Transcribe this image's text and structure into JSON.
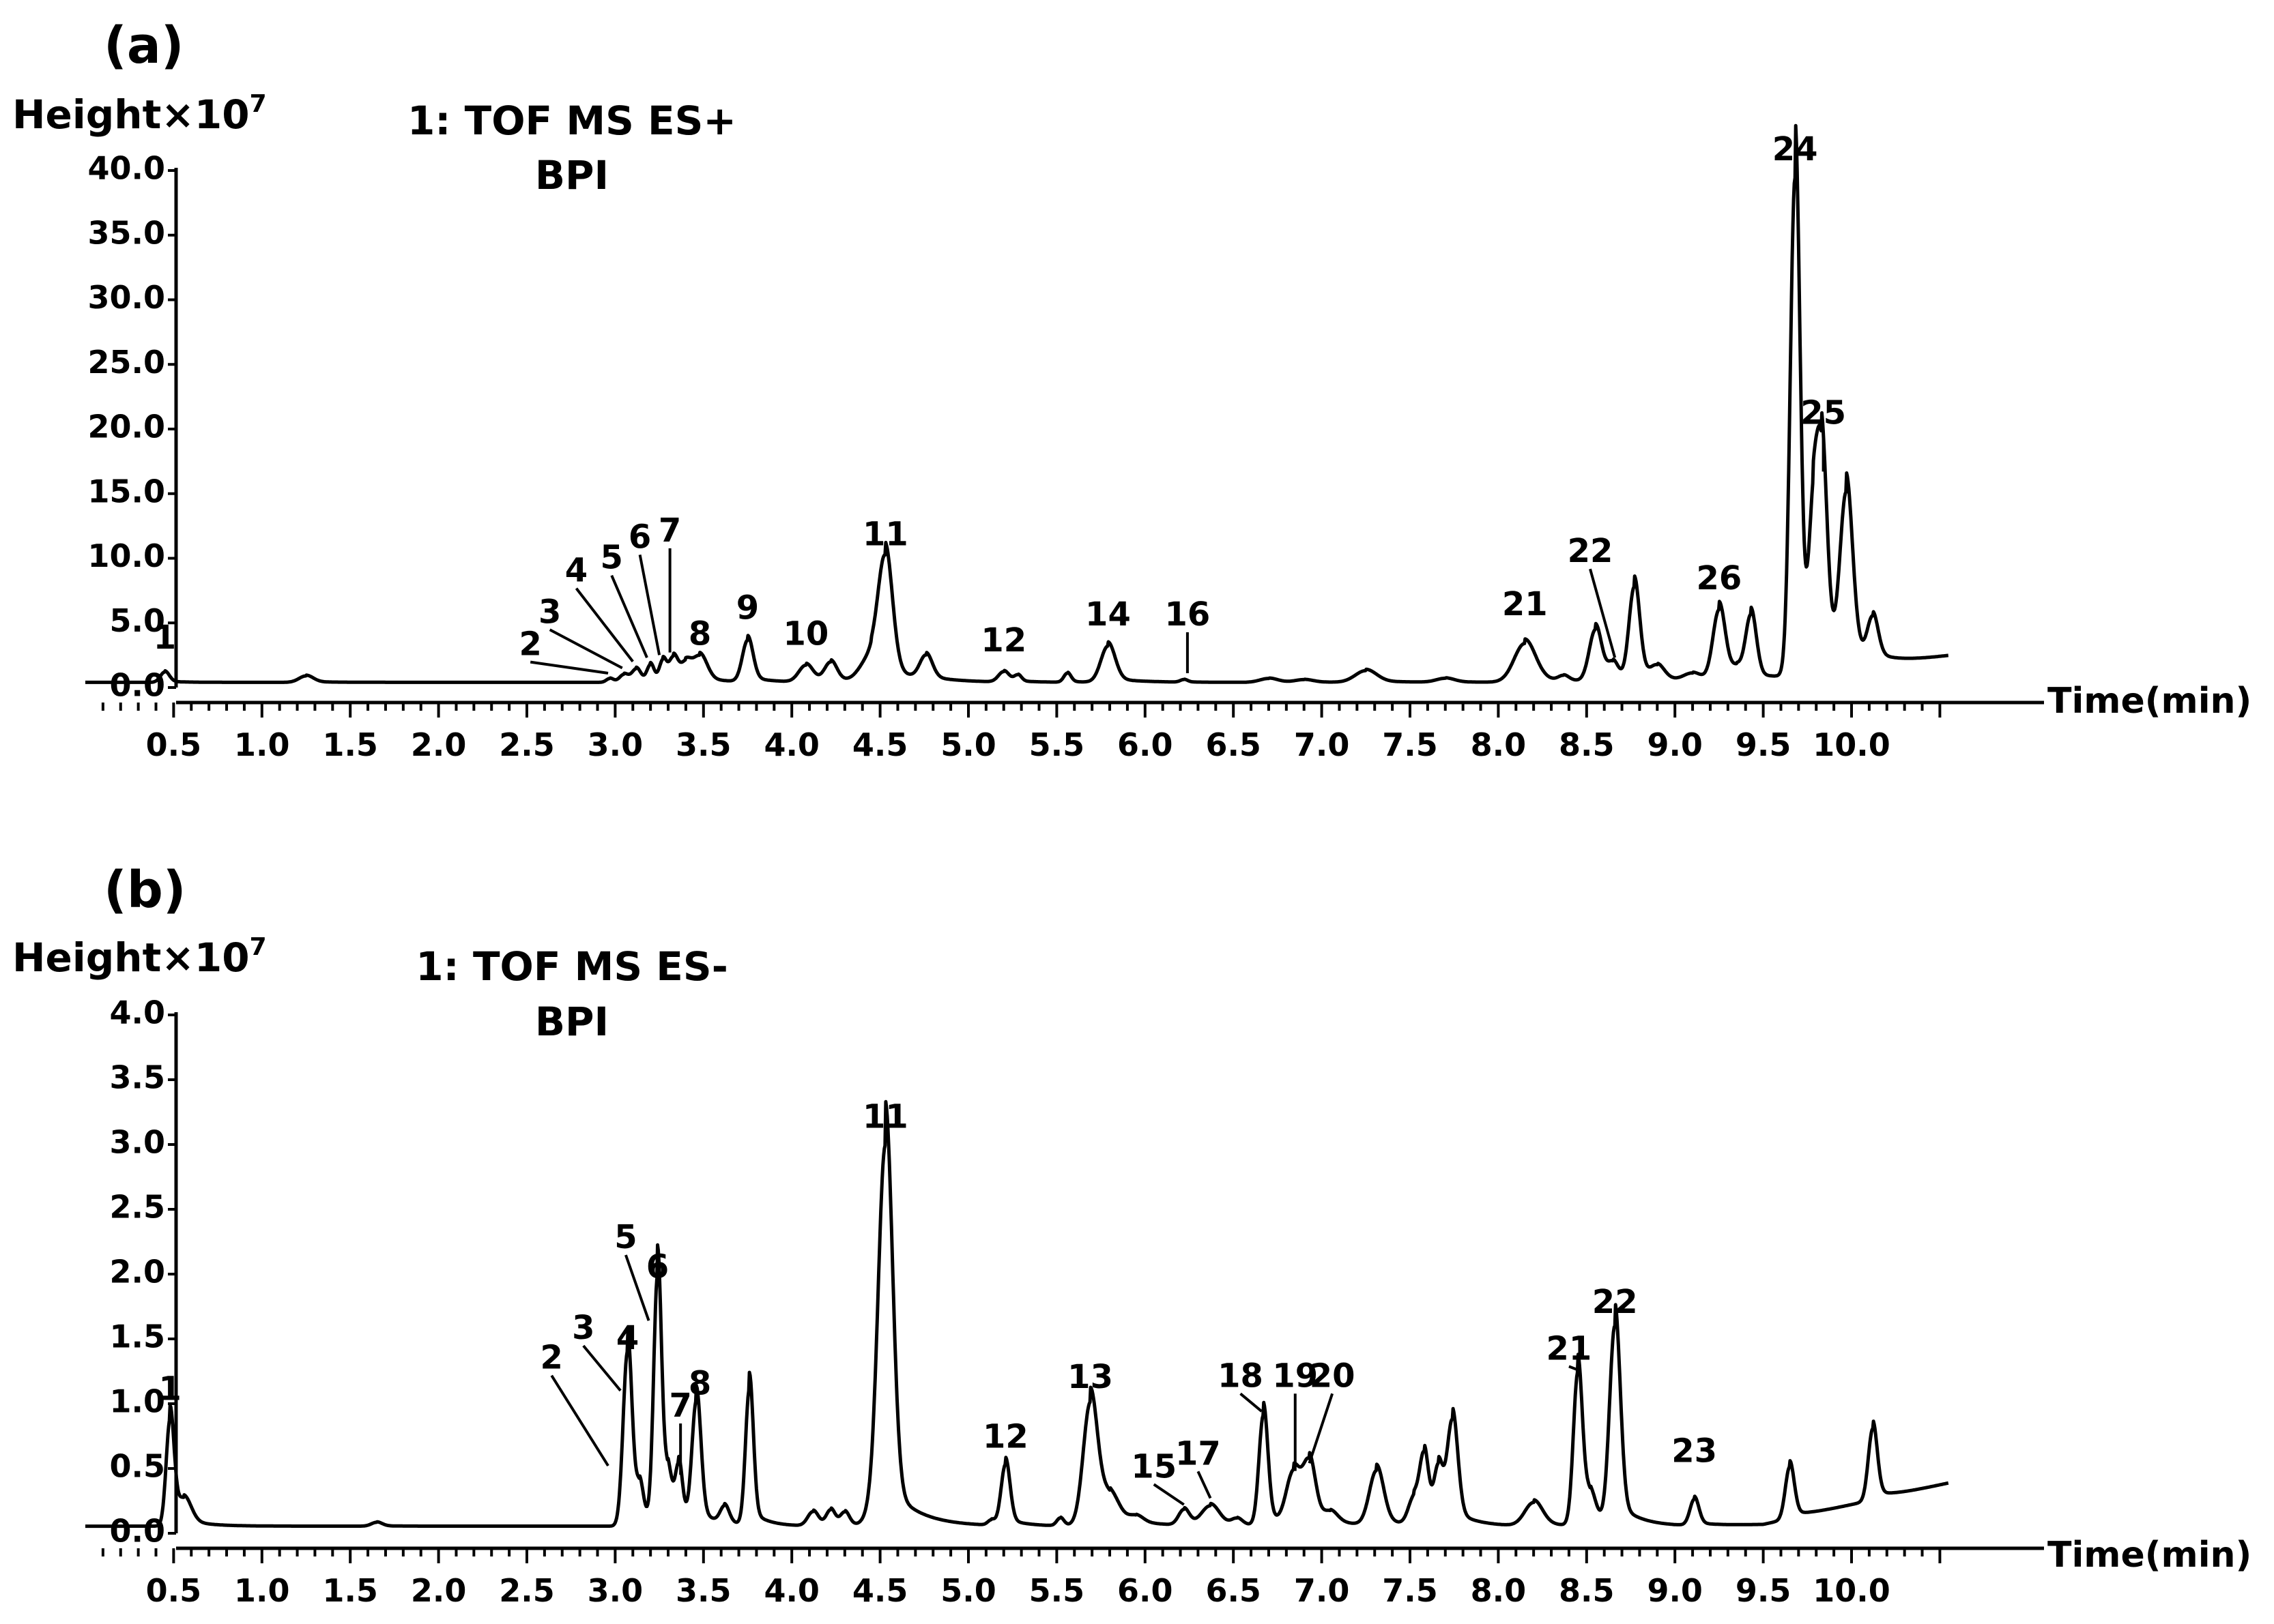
{
  "chart_data": [
    {
      "type": "line",
      "panel_label": "(a)",
      "y_unit_label": "Height×10",
      "y_unit_exp": "7",
      "title": "1: TOF MS ES+",
      "subtitle": "BPI",
      "xlabel": "Time(min)",
      "xlim": [
        0,
        10.5
      ],
      "ylim": [
        0,
        40
      ],
      "x_ticks": [
        "0.5",
        "1.0",
        "1.5",
        "2.0",
        "2.5",
        "3.0",
        "3.5",
        "4.0",
        "4.5",
        "5.0",
        "5.5",
        "6.0",
        "6.5",
        "7.0",
        "7.5",
        "8.0",
        "8.5",
        "9.0",
        "9.5",
        "10.0"
      ],
      "y_ticks": [
        "0.0",
        "5.0",
        "10.0",
        "15.0",
        "20.0",
        "25.0",
        "30.0",
        "35.0",
        "40.0"
      ],
      "baseline": 0.4,
      "end_value": 2.4,
      "peaks": [
        [
          0.45,
          0.8,
          0.025
        ],
        [
          1.25,
          0.5,
          0.04
        ],
        [
          2.97,
          0.3,
          0.02
        ],
        [
          3.05,
          0.6,
          0.025
        ],
        [
          3.12,
          1.0,
          0.025
        ],
        [
          3.2,
          1.3,
          0.02
        ],
        [
          3.27,
          1.6,
          0.02
        ],
        [
          3.33,
          1.8,
          0.025
        ],
        [
          3.4,
          1.3,
          0.03
        ],
        [
          3.48,
          1.9,
          0.04
        ],
        [
          3.75,
          3.2,
          0.03
        ],
        [
          4.08,
          1.3,
          0.04
        ],
        [
          4.22,
          1.5,
          0.035
        ],
        [
          4.45,
          2.0,
          0.06
        ],
        [
          4.53,
          8.8,
          0.04
        ],
        [
          4.76,
          1.8,
          0.035
        ],
        [
          5.2,
          0.8,
          0.03
        ],
        [
          5.28,
          0.5,
          0.02
        ],
        [
          5.56,
          0.7,
          0.02
        ],
        [
          5.79,
          2.8,
          0.04
        ],
        [
          6.22,
          0.2,
          0.02
        ],
        [
          6.7,
          0.3,
          0.05
        ],
        [
          6.9,
          0.2,
          0.05
        ],
        [
          7.25,
          0.9,
          0.06
        ],
        [
          7.7,
          0.3,
          0.05
        ],
        [
          8.15,
          3.0,
          0.06
        ],
        [
          8.37,
          0.4,
          0.03
        ],
        [
          8.55,
          4.0,
          0.035
        ],
        [
          8.65,
          1.3,
          0.03
        ],
        [
          8.77,
          7.2,
          0.03
        ],
        [
          8.9,
          1.0,
          0.04
        ],
        [
          9.1,
          0.6,
          0.05
        ],
        [
          9.25,
          5.5,
          0.035
        ],
        [
          9.35,
          0.8,
          0.03
        ],
        [
          9.43,
          4.9,
          0.03
        ],
        [
          9.68,
          38.5,
          0.027
        ],
        [
          9.78,
          9.0,
          0.025
        ],
        [
          9.83,
          15.5,
          0.03
        ],
        [
          9.97,
          12.7,
          0.035
        ],
        [
          10.12,
          3.1,
          0.03
        ]
      ],
      "peak_labels": [
        {
          "text": "1",
          "x": 0.45,
          "y": 1.1,
          "lx": 0.45,
          "ly": 3.0
        },
        {
          "text": "2",
          "x": 2.96,
          "y": 0.9,
          "lx": 2.52,
          "ly": 2.5
        },
        {
          "text": "3",
          "x": 3.04,
          "y": 1.3,
          "lx": 2.63,
          "ly": 5.0
        },
        {
          "text": "4",
          "x": 3.1,
          "y": 1.8,
          "lx": 2.78,
          "ly": 8.2
        },
        {
          "text": "5",
          "x": 3.18,
          "y": 2.1,
          "lx": 2.98,
          "ly": 9.2
        },
        {
          "text": "6",
          "x": 3.25,
          "y": 2.3,
          "lx": 3.14,
          "ly": 10.8
        },
        {
          "text": "7",
          "x": 3.31,
          "y": 2.5,
          "lx": 3.31,
          "ly": 11.3
        },
        {
          "text": "8",
          "x": 3.48,
          "y": 2.5,
          "lx": 3.48,
          "ly": 3.3
        },
        {
          "text": "9",
          "x": 3.75,
          "y": 3.7,
          "lx": 3.75,
          "ly": 5.3
        },
        {
          "text": "10",
          "x": 4.08,
          "y": 1.8,
          "lx": 4.08,
          "ly": 3.3
        },
        {
          "text": "11",
          "x": 4.53,
          "y": 9.5,
          "lx": 4.53,
          "ly": 11.0
        },
        {
          "text": "12",
          "x": 5.2,
          "y": 1.4,
          "lx": 5.2,
          "ly": 2.8
        },
        {
          "text": "14",
          "x": 5.79,
          "y": 3.4,
          "lx": 5.79,
          "ly": 4.8
        },
        {
          "text": "16",
          "x": 6.24,
          "y": 0.9,
          "lx": 6.24,
          "ly": 4.8
        },
        {
          "text": "21",
          "x": 8.15,
          "y": 3.6,
          "lx": 8.15,
          "ly": 5.6
        },
        {
          "text": "22",
          "x": 8.66,
          "y": 2.1,
          "lx": 8.52,
          "ly": 9.7
        },
        {
          "text": "24",
          "x": 9.68,
          "y": 39.2,
          "lx": 9.68,
          "ly": 40.8
        },
        {
          "text": "25",
          "x": 9.84,
          "y": 16.5,
          "lx": 9.84,
          "ly": 20.4
        },
        {
          "text": "26",
          "x": 9.25,
          "y": 6.1,
          "lx": 9.25,
          "ly": 7.6
        }
      ]
    },
    {
      "type": "line",
      "panel_label": "(b)",
      "y_unit_label": "Height×10",
      "y_unit_exp": "7",
      "title": "1: TOF MS ES-",
      "subtitle": "BPI",
      "xlabel": "Time(min)",
      "xlim": [
        0,
        10.5
      ],
      "ylim": [
        0,
        4.0
      ],
      "x_ticks": [
        "0.5",
        "1.0",
        "1.5",
        "2.0",
        "2.5",
        "3.0",
        "3.5",
        "4.0",
        "4.5",
        "5.0",
        "5.5",
        "6.0",
        "6.5",
        "7.0",
        "7.5",
        "8.0",
        "8.5",
        "9.0",
        "9.5",
        "10.0"
      ],
      "y_ticks": [
        "0.0",
        "0.5",
        "1.0",
        "1.5",
        "2.0",
        "2.5",
        "3.0",
        "3.5",
        "4.0"
      ],
      "baseline": 0.055,
      "end_value": 0.38,
      "peaks": [
        [
          0.48,
          0.81,
          0.022
        ],
        [
          0.56,
          0.18,
          0.04
        ],
        [
          1.65,
          0.03,
          0.03
        ],
        [
          3.07,
          1.35,
          0.025
        ],
        [
          3.14,
          0.25,
          0.02
        ],
        [
          3.24,
          1.9,
          0.022
        ],
        [
          3.3,
          0.3,
          0.02
        ],
        [
          3.36,
          0.4,
          0.02
        ],
        [
          3.46,
          0.93,
          0.025
        ],
        [
          3.62,
          0.13,
          0.025
        ],
        [
          3.76,
          1.05,
          0.022
        ],
        [
          4.12,
          0.11,
          0.03
        ],
        [
          4.22,
          0.12,
          0.025
        ],
        [
          4.3,
          0.1,
          0.025
        ],
        [
          4.46,
          0.12,
          0.04
        ],
        [
          4.53,
          2.9,
          0.04
        ],
        [
          5.13,
          0.04,
          0.02
        ],
        [
          5.21,
          0.47,
          0.025
        ],
        [
          5.52,
          0.06,
          0.02
        ],
        [
          5.69,
          0.94,
          0.04
        ],
        [
          5.8,
          0.2,
          0.05
        ],
        [
          5.95,
          0.05,
          0.04
        ],
        [
          6.22,
          0.12,
          0.03
        ],
        [
          6.37,
          0.15,
          0.05
        ],
        [
          6.52,
          0.05,
          0.03
        ],
        [
          6.67,
          0.85,
          0.025
        ],
        [
          6.84,
          0.4,
          0.04
        ],
        [
          6.93,
          0.45,
          0.035
        ],
        [
          7.05,
          0.08,
          0.04
        ],
        [
          7.31,
          0.42,
          0.04
        ],
        [
          7.52,
          0.2,
          0.03
        ],
        [
          7.58,
          0.52,
          0.025
        ],
        [
          7.66,
          0.42,
          0.025
        ],
        [
          7.74,
          0.78,
          0.03
        ],
        [
          8.2,
          0.18,
          0.05
        ],
        [
          8.45,
          1.17,
          0.025
        ],
        [
          8.52,
          0.2,
          0.03
        ],
        [
          8.66,
          1.52,
          0.03
        ],
        [
          9.11,
          0.2,
          0.025
        ],
        [
          9.65,
          0.4,
          0.025
        ],
        [
          10.12,
          0.55,
          0.025
        ]
      ],
      "peak_labels": [
        {
          "text": "1",
          "x": 0.48,
          "y": 0.87,
          "lx": 0.48,
          "ly": 1.03
        },
        {
          "text": "2",
          "x": 2.96,
          "y": 0.5,
          "lx": 2.64,
          "ly": 1.27
        },
        {
          "text": "3",
          "x": 3.03,
          "y": 1.08,
          "lx": 2.82,
          "ly": 1.5
        },
        {
          "text": "4",
          "x": 3.07,
          "y": 1.43,
          "lx": 3.07,
          "ly": 1.42
        },
        {
          "text": "5",
          "x": 3.19,
          "y": 1.62,
          "lx": 3.06,
          "ly": 2.2
        },
        {
          "text": "6",
          "x": 3.24,
          "y": 1.98,
          "lx": 3.24,
          "ly": 1.97
        },
        {
          "text": "7",
          "x": 3.37,
          "y": 0.43,
          "lx": 3.37,
          "ly": 0.9
        },
        {
          "text": "8",
          "x": 3.48,
          "y": 0.97,
          "lx": 3.48,
          "ly": 1.07
        },
        {
          "text": "11",
          "x": 4.53,
          "y": 2.98,
          "lx": 4.53,
          "ly": 3.13
        },
        {
          "text": "12",
          "x": 5.21,
          "y": 0.54,
          "lx": 5.21,
          "ly": 0.66
        },
        {
          "text": "13",
          "x": 5.69,
          "y": 1.0,
          "lx": 5.69,
          "ly": 1.12
        },
        {
          "text": "15",
          "x": 6.22,
          "y": 0.2,
          "lx": 6.05,
          "ly": 0.43
        },
        {
          "text": "17",
          "x": 6.37,
          "y": 0.25,
          "lx": 6.3,
          "ly": 0.53
        },
        {
          "text": "18",
          "x": 6.66,
          "y": 0.92,
          "lx": 6.54,
          "ly": 1.13
        },
        {
          "text": "19",
          "x": 6.85,
          "y": 0.46,
          "lx": 6.85,
          "ly": 1.13
        },
        {
          "text": "20",
          "x": 6.93,
          "y": 0.52,
          "lx": 7.06,
          "ly": 1.13
        },
        {
          "text": "21",
          "x": 8.45,
          "y": 1.24,
          "lx": 8.4,
          "ly": 1.34
        },
        {
          "text": "22",
          "x": 8.66,
          "y": 1.61,
          "lx": 8.66,
          "ly": 1.7
        },
        {
          "text": "23",
          "x": 9.11,
          "y": 0.28,
          "lx": 9.11,
          "ly": 0.55
        }
      ]
    }
  ]
}
